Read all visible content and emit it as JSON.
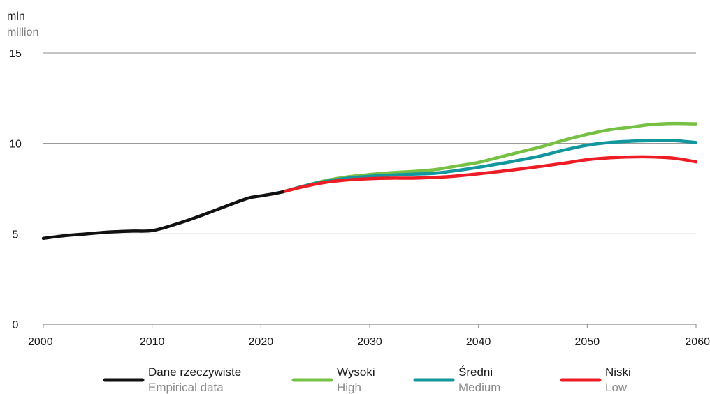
{
  "chart_data": {
    "type": "line",
    "title": "",
    "unit_pl": "mln",
    "unit_en": "million",
    "xlabel": "",
    "ylabel": "",
    "xlim": [
      2000,
      2060
    ],
    "ylim": [
      0,
      15
    ],
    "x_ticks": [
      "2000",
      "2010",
      "2020",
      "2030",
      "2040",
      "2050",
      "2060"
    ],
    "y_ticks": [
      "0",
      "5",
      "10",
      "15"
    ],
    "grid": "horizontal",
    "legend_position": "bottom",
    "series": [
      {
        "name": "Dane rzeczywiste",
        "name_en": "Empirical data",
        "color": "#111111",
        "x": [
          2000,
          2002,
          2004,
          2006,
          2008,
          2010,
          2012,
          2014,
          2016,
          2018,
          2019,
          2020,
          2021,
          2022
        ],
        "y": [
          4.75,
          4.9,
          5.0,
          5.1,
          5.15,
          5.18,
          5.5,
          5.9,
          6.35,
          6.8,
          7.0,
          7.1,
          7.2,
          7.32
        ]
      },
      {
        "name": "Wysoki",
        "name_en": "High",
        "color": "#76c043",
        "x": [
          2022,
          2024,
          2026,
          2028,
          2030,
          2032,
          2034,
          2036,
          2038,
          2040,
          2042,
          2044,
          2046,
          2048,
          2050,
          2052,
          2054,
          2056,
          2058,
          2060
        ],
        "y": [
          7.32,
          7.65,
          7.95,
          8.15,
          8.28,
          8.38,
          8.45,
          8.55,
          8.75,
          8.95,
          9.25,
          9.55,
          9.85,
          10.2,
          10.5,
          10.75,
          10.9,
          11.05,
          11.1,
          11.08
        ]
      },
      {
        "name": "Średni",
        "name_en": "Medium",
        "color": "#12979f",
        "x": [
          2022,
          2024,
          2026,
          2028,
          2030,
          2032,
          2034,
          2036,
          2038,
          2040,
          2042,
          2044,
          2046,
          2048,
          2050,
          2052,
          2054,
          2056,
          2058,
          2060
        ],
        "y": [
          7.32,
          7.65,
          7.9,
          8.08,
          8.18,
          8.25,
          8.3,
          8.35,
          8.5,
          8.68,
          8.88,
          9.1,
          9.35,
          9.65,
          9.9,
          10.05,
          10.12,
          10.15,
          10.15,
          10.05
        ]
      },
      {
        "name": "Niski",
        "name_en": "Low",
        "color": "#ee1c25",
        "x": [
          2022,
          2024,
          2026,
          2028,
          2030,
          2032,
          2034,
          2036,
          2038,
          2040,
          2042,
          2044,
          2046,
          2048,
          2050,
          2052,
          2054,
          2056,
          2058,
          2060
        ],
        "y": [
          7.32,
          7.62,
          7.85,
          7.98,
          8.05,
          8.08,
          8.08,
          8.12,
          8.2,
          8.32,
          8.45,
          8.6,
          8.75,
          8.92,
          9.1,
          9.2,
          9.25,
          9.25,
          9.18,
          8.98
        ]
      }
    ]
  }
}
